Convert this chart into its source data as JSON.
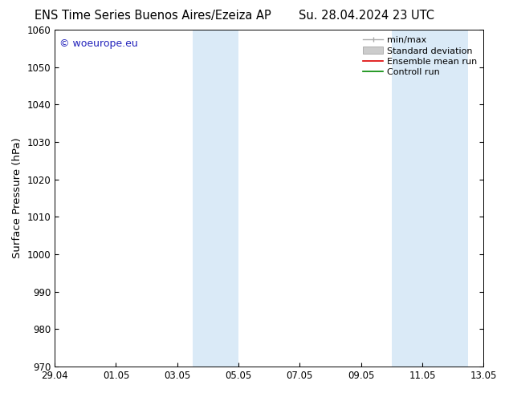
{
  "title_left": "ENS Time Series Buenos Aires/Ezeiza AP",
  "title_right": "Su. 28.04.2024 23 UTC",
  "ylabel": "Surface Pressure (hPa)",
  "ylim": [
    970,
    1060
  ],
  "yticks": [
    970,
    980,
    990,
    1000,
    1010,
    1020,
    1030,
    1040,
    1050,
    1060
  ],
  "xlabel_ticks": [
    "29.04",
    "01.05",
    "03.05",
    "05.05",
    "07.05",
    "09.05",
    "11.05",
    "13.05"
  ],
  "x_num_ticks": [
    0,
    2,
    4,
    6,
    8,
    10,
    12,
    14
  ],
  "xlim": [
    0,
    14
  ],
  "shaded_bands": [
    {
      "x_start": 4.5,
      "x_end": 6.0
    },
    {
      "x_start": 11.0,
      "x_end": 13.5
    }
  ],
  "shaded_color": "#daeaf7",
  "background_color": "#ffffff",
  "watermark_text": "© woeurope.eu",
  "watermark_color": "#2222bb",
  "legend_labels": [
    "min/max",
    "Standard deviation",
    "Ensemble mean run",
    "Controll run"
  ],
  "legend_colors_line": [
    "#aaaaaa",
    "#bbbbbb",
    "#dd0000",
    "#008800"
  ],
  "title_fontsize": 10.5,
  "tick_fontsize": 8.5,
  "ylabel_fontsize": 9.5,
  "watermark_fontsize": 9,
  "legend_fontsize": 8
}
